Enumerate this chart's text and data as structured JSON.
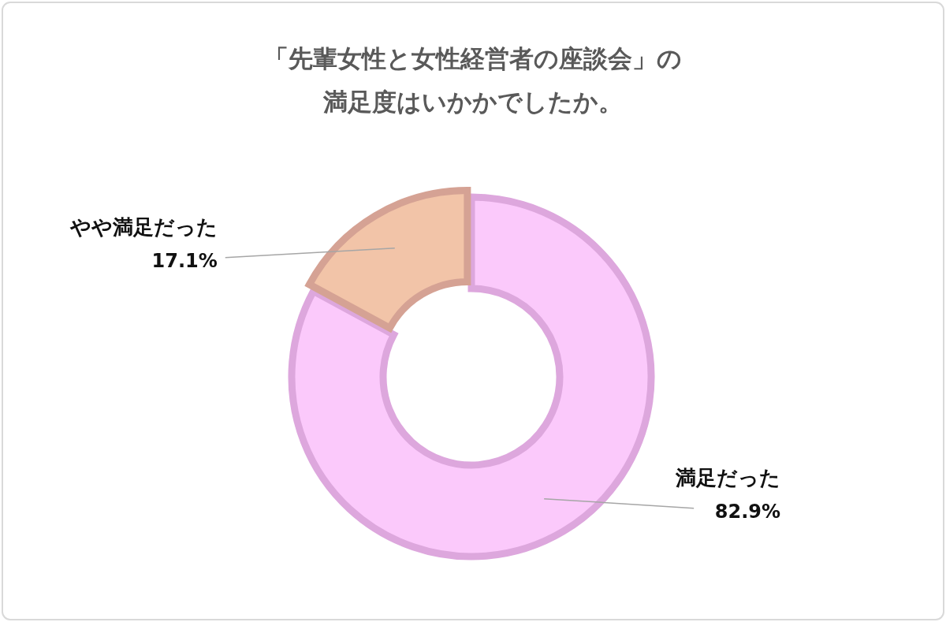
{
  "chart_data": {
    "type": "donut",
    "title": "「先輩女性と女性経営者の座談会」の満足度はいかかでしたか。",
    "categories": [
      "満足だった",
      "やや満足だった"
    ],
    "values": [
      82.9,
      17.1
    ],
    "colors": [
      "#fbc9fb",
      "#f2c4a8"
    ],
    "value_labels": [
      "82.9%",
      "17.1%"
    ]
  }
}
